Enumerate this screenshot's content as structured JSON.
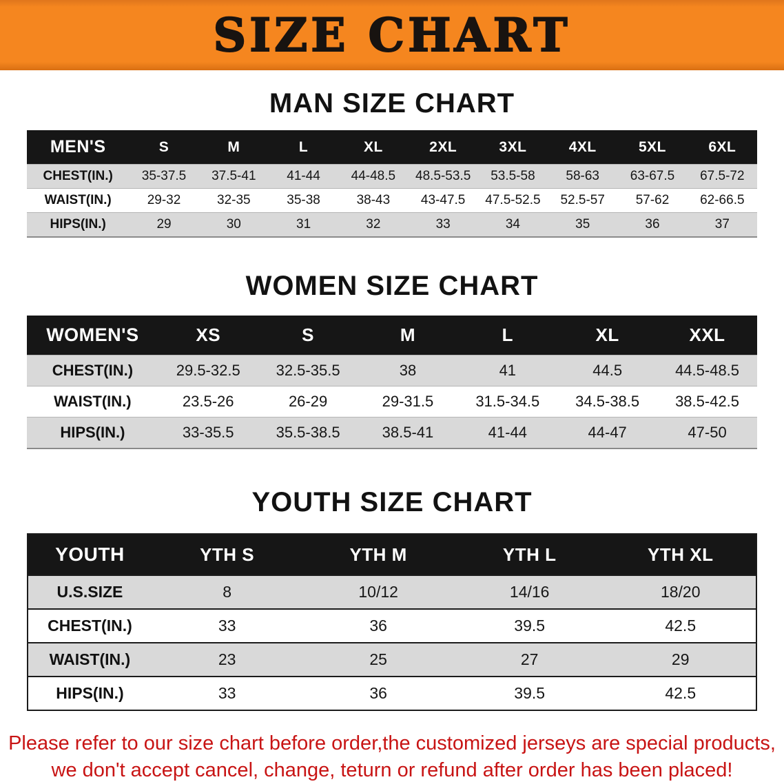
{
  "banner": {
    "title": "SIZE CHART",
    "bg_color": "#f5861f",
    "text_color": "#181310"
  },
  "colors": {
    "table_header_bg": "#161616",
    "table_row_gray": "#d9d9d9",
    "footer_red": "#c81414"
  },
  "men": {
    "heading": "MAN SIZE CHART",
    "table": {
      "header": [
        "MEN'S",
        "S",
        "M",
        "L",
        "XL",
        "2XL",
        "3XL",
        "4XL",
        "5XL",
        "6XL"
      ],
      "rows": [
        [
          "CHEST(IN.)",
          "35-37.5",
          "37.5-41",
          "41-44",
          "44-48.5",
          "48.5-53.5",
          "53.5-58",
          "58-63",
          "63-67.5",
          "67.5-72"
        ],
        [
          "WAIST(IN.)",
          "29-32",
          "32-35",
          "35-38",
          "38-43",
          "43-47.5",
          "47.5-52.5",
          "52.5-57",
          "57-62",
          "62-66.5"
        ],
        [
          "HIPS(IN.)",
          "29",
          "30",
          "31",
          "32",
          "33",
          "34",
          "35",
          "36",
          "37"
        ]
      ]
    }
  },
  "women": {
    "heading": "WOMEN SIZE CHART",
    "table": {
      "header": [
        "WOMEN'S",
        "XS",
        "S",
        "M",
        "L",
        "XL",
        "XXL"
      ],
      "rows": [
        [
          "CHEST(IN.)",
          "29.5-32.5",
          "32.5-35.5",
          "38",
          "41",
          "44.5",
          "44.5-48.5"
        ],
        [
          "WAIST(IN.)",
          "23.5-26",
          "26-29",
          "29-31.5",
          "31.5-34.5",
          "34.5-38.5",
          "38.5-42.5"
        ],
        [
          "HIPS(IN.)",
          "33-35.5",
          "35.5-38.5",
          "38.5-41",
          "41-44",
          "44-47",
          "47-50"
        ]
      ]
    }
  },
  "youth": {
    "heading": "YOUTH SIZE CHART",
    "table": {
      "header": [
        "YOUTH",
        "YTH S",
        "YTH M",
        "YTH L",
        "YTH XL"
      ],
      "rows": [
        [
          "U.S.SIZE",
          "8",
          "10/12",
          "14/16",
          "18/20"
        ],
        [
          "CHEST(IN.)",
          "33",
          "36",
          "39.5",
          "42.5"
        ],
        [
          "WAIST(IN.)",
          "23",
          "25",
          "27",
          "29"
        ],
        [
          "HIPS(IN.)",
          "33",
          "36",
          "39.5",
          "42.5"
        ]
      ]
    }
  },
  "footer": {
    "line1": "Please refer to our size chart before order,the customized jerseys are special products,",
    "line2": "we don't accept cancel, change, teturn or refund after order has been placed!"
  }
}
